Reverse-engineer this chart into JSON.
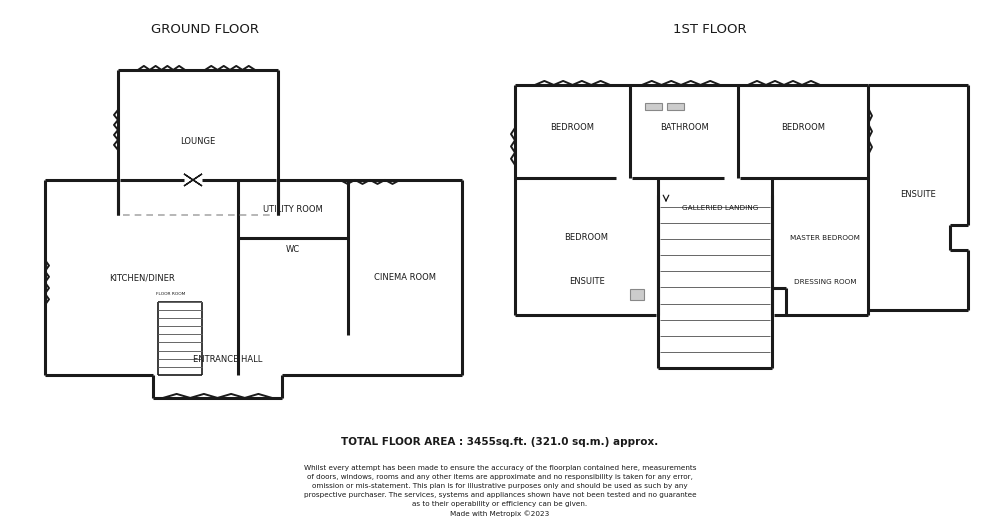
{
  "title_ground": "GROUND FLOOR",
  "title_first": "1ST FLOOR",
  "footer_title": "TOTAL FLOOR AREA : 3455sq.ft. (321.0 sq.m.) approx.",
  "footer_body": "Whilst every attempt has been made to ensure the accuracy of the floorplan contained here, measurements\nof doors, windows, rooms and any other items are approximate and no responsibility is taken for any error,\nomission or mis-statement. This plan is for illustrative purposes only and should be used as such by any\nprospective purchaser. The services, systems and appliances shown have not been tested and no guarantee\nas to their operability or efficiency can be given.\nMade with Metropix ©2023",
  "wall_color": "#1a1a1a",
  "wall_lw": 2.2,
  "bg_color": "#ffffff",
  "dash_color": "#aaaaaa",
  "room_label_fontsize": 6.0,
  "title_fontsize": 9.5,
  "footer_title_fontsize": 7.5,
  "footer_body_fontsize": 5.2
}
